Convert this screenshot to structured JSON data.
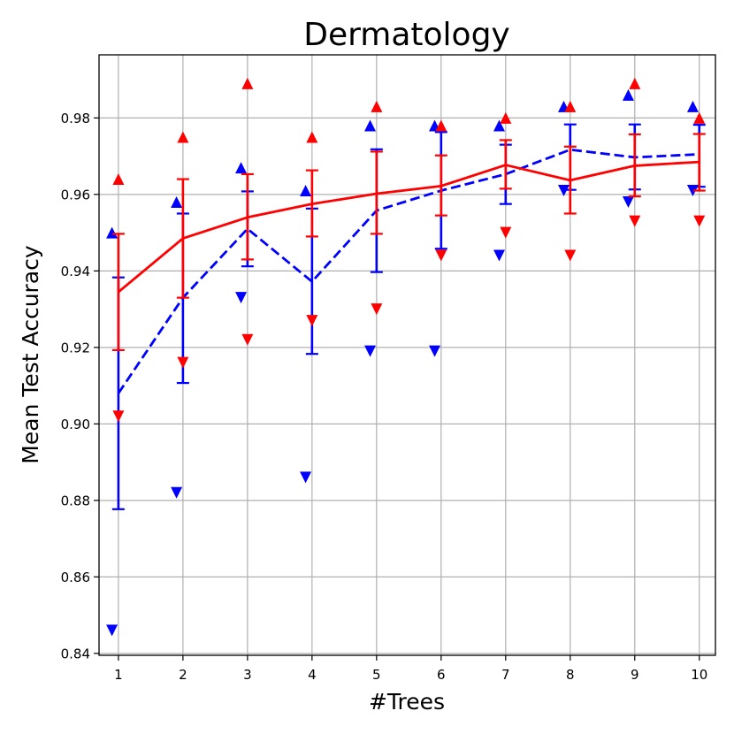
{
  "chart_data": {
    "type": "line",
    "title": "Dermatology",
    "xlabel": "#Trees",
    "ylabel": "Mean Test Accuracy",
    "x": [
      1,
      2,
      3,
      4,
      5,
      6,
      7,
      8,
      9,
      10
    ],
    "xlim": [
      0.7,
      10.25
    ],
    "ylim": [
      0.8395,
      0.9965
    ],
    "xticks": [
      1,
      2,
      3,
      4,
      5,
      6,
      7,
      8,
      9,
      10
    ],
    "yticks": [
      0.84,
      0.86,
      0.88,
      0.9,
      0.92,
      0.94,
      0.96,
      0.98
    ],
    "grid": true,
    "series": [
      {
        "name": "red",
        "color": "#ff0000",
        "linestyle": "solid",
        "marker_offset": 0.0,
        "mean": [
          0.9345,
          0.9485,
          0.954,
          0.9575,
          0.9602,
          0.9622,
          0.9677,
          0.9637,
          0.9675,
          0.9685
        ],
        "err_low": [
          0.9193,
          0.933,
          0.943,
          0.949,
          0.9497,
          0.9545,
          0.9615,
          0.955,
          0.9595,
          0.961
        ],
        "err_high": [
          0.9497,
          0.964,
          0.9653,
          0.9663,
          0.9712,
          0.9702,
          0.9742,
          0.9725,
          0.9757,
          0.9758
        ],
        "max": [
          0.964,
          0.975,
          0.989,
          0.975,
          0.983,
          0.978,
          0.98,
          0.983,
          0.989,
          0.98
        ],
        "min": [
          0.902,
          0.916,
          0.922,
          0.927,
          0.93,
          0.944,
          0.95,
          0.944,
          0.953,
          0.953
        ]
      },
      {
        "name": "blue",
        "color": "#0000ff",
        "linestyle": "dashed",
        "marker_offset": -0.1,
        "mean": [
          0.908,
          0.933,
          0.951,
          0.9372,
          0.9558,
          0.961,
          0.9653,
          0.9717,
          0.9697,
          0.9705
        ],
        "err_low": [
          0.8777,
          0.9107,
          0.9412,
          0.9183,
          0.9397,
          0.9458,
          0.9575,
          0.9612,
          0.9613,
          0.962
        ],
        "err_high": [
          0.9383,
          0.955,
          0.9608,
          0.9563,
          0.9718,
          0.9763,
          0.973,
          0.9783,
          0.9783,
          0.9782
        ],
        "max": [
          0.95,
          0.958,
          0.967,
          0.961,
          0.978,
          0.978,
          0.978,
          0.983,
          0.986,
          0.983
        ],
        "min": [
          0.846,
          0.882,
          0.933,
          0.886,
          0.919,
          0.919,
          0.944,
          0.961,
          0.958,
          0.961
        ]
      }
    ]
  }
}
